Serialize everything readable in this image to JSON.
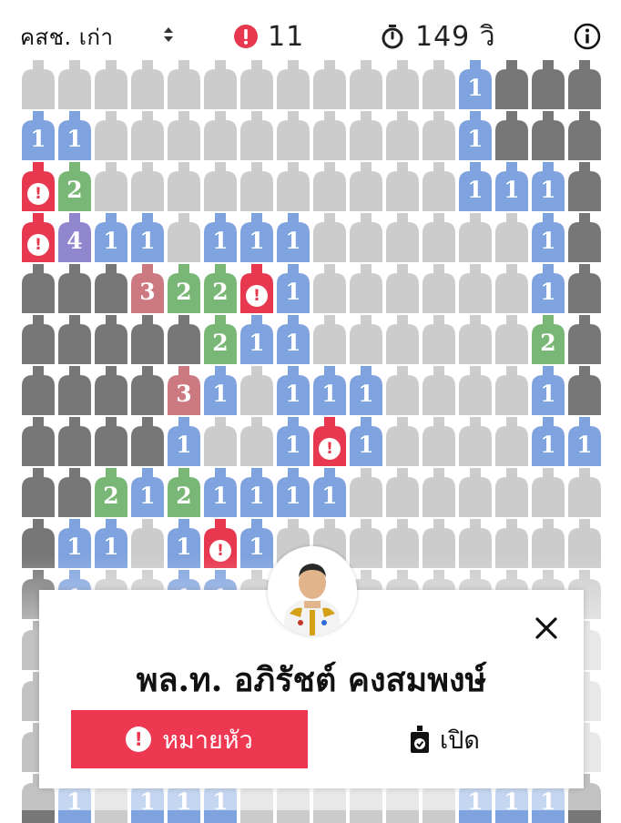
{
  "header": {
    "party_select": "คสช. เก่า",
    "flag_count": "11",
    "timer": "149 วิ"
  },
  "board": {
    "columns": 16,
    "rows": 15,
    "cell_colors": {
      "hidden": "#cccccc",
      "revealed": "#777777",
      "1": "#7fa3de",
      "2": "#79b777",
      "3": "#cc7a80",
      "4": "#9086ce",
      "mine": "#e8384f"
    },
    "rows_data": [
      "HHHHHHHHHHHH1RRR",
      "11HHHHHHHHHH1RRR",
      "M2HHHHHHHHHH111R",
      "M411H111HHHHHH1R",
      "RRR322M1HHHHHH1R",
      "RRRRR211HHHHHH2R",
      "RRRR31H111HHHH1R",
      "RRRR1HH1M1HHHH11",
      "RR2121111HHHHHHH",
      "R11H1M1HHHHHHHHH",
      "R1HH11HHHHHHHHHH",
      "RHHHHHHHHHHHHHHH",
      "RHHHHHHHHHHHHHHH",
      "RHHHHHHHHHHHHHHH",
      "R1H111HHHHHH111R"
    ]
  },
  "dialog": {
    "candidate_name": "พล.ท. อภิรัชต์ คงสมพงษ์",
    "mark_label": "หมายหัว",
    "open_label": "เปิด",
    "colors": {
      "accent": "#ee3750",
      "text": "#111111"
    }
  }
}
